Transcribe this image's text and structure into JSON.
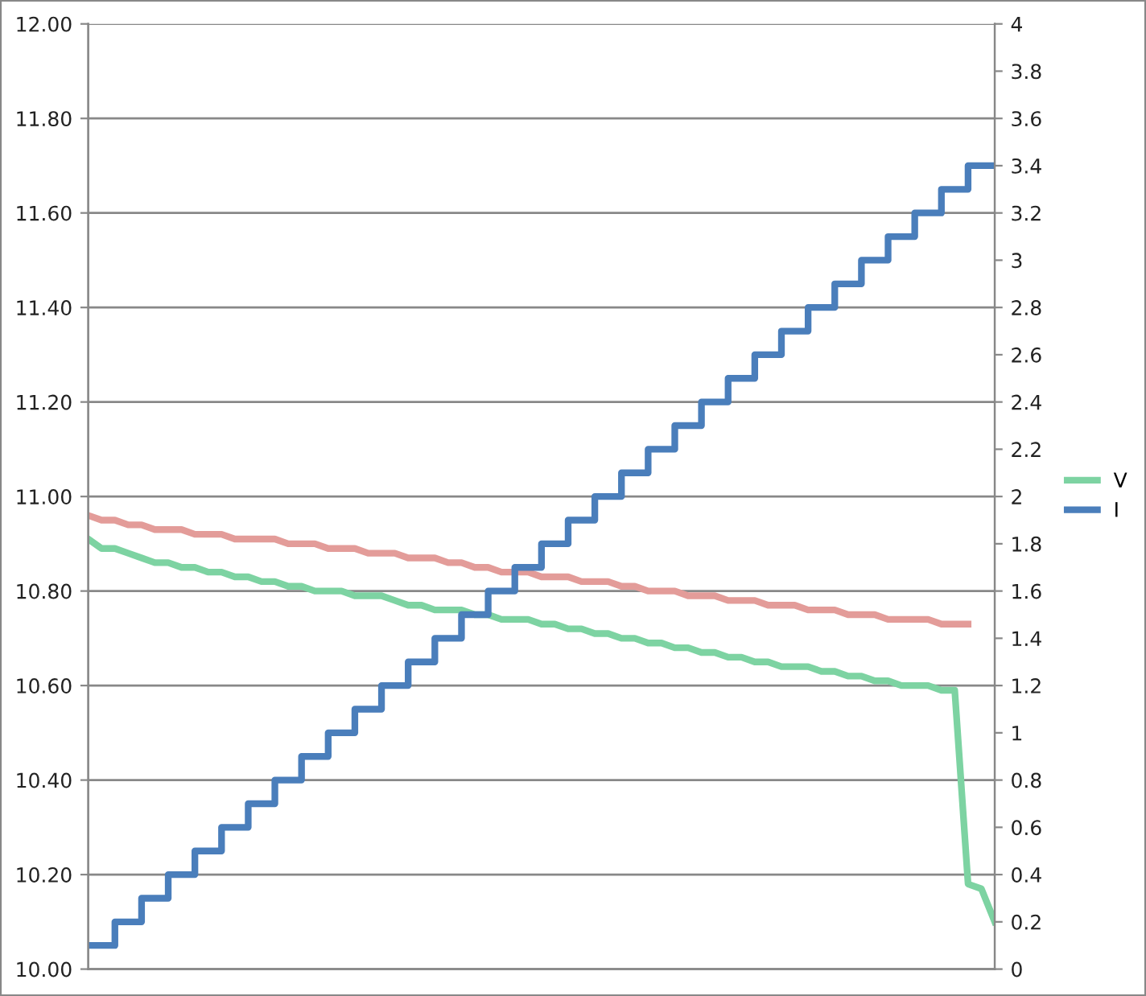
{
  "chart_data": {
    "type": "line",
    "categories": [
      null,
      null,
      null,
      null,
      null,
      null,
      null,
      null,
      null,
      null,
      null,
      null,
      null,
      null,
      null,
      null,
      null,
      null,
      null,
      null,
      null,
      null,
      null,
      null,
      null,
      null,
      null,
      null,
      null,
      null,
      null,
      null,
      null,
      null,
      null,
      null,
      null,
      null,
      null,
      null,
      null,
      null,
      null,
      null,
      null,
      null,
      null,
      null,
      null,
      null,
      null,
      null,
      null,
      null,
      null,
      null,
      null,
      null,
      null,
      null,
      null,
      null,
      null,
      null,
      null,
      null,
      null,
      null,
      null
    ],
    "series": [
      {
        "color": "#e39c99",
        "values": [
          10.96,
          10.95,
          10.95,
          10.94,
          10.94,
          10.93,
          10.93,
          10.93,
          10.92,
          10.92,
          10.92,
          10.91,
          10.91,
          10.91,
          10.91,
          10.9,
          10.9,
          10.9,
          10.89,
          10.89,
          10.89,
          10.88,
          10.88,
          10.88,
          10.87,
          10.87,
          10.87,
          10.86,
          10.86,
          10.85,
          10.85,
          10.84,
          10.84,
          10.84,
          10.83,
          10.83,
          10.83,
          10.82,
          10.82,
          10.82,
          10.81,
          10.81,
          10.8,
          10.8,
          10.8,
          10.79,
          10.79,
          10.79,
          10.78,
          10.78,
          10.78,
          10.77,
          10.77,
          10.77,
          10.76,
          10.76,
          10.76,
          10.75,
          10.75,
          10.75,
          10.74,
          10.74,
          10.74,
          10.74,
          10.73,
          10.73,
          10.73,
          null,
          null
        ]
      },
      {
        "name": "V",
        "color": "#7dd3a2",
        "values": [
          10.91,
          10.89,
          10.89,
          10.88,
          10.87,
          10.86,
          10.86,
          10.85,
          10.85,
          10.84,
          10.84,
          10.83,
          10.83,
          10.82,
          10.82,
          10.81,
          10.81,
          10.8,
          10.8,
          10.8,
          10.79,
          10.79,
          10.79,
          10.78,
          10.77,
          10.77,
          10.76,
          10.76,
          10.76,
          10.75,
          10.75,
          10.74,
          10.74,
          10.74,
          10.73,
          10.73,
          10.72,
          10.72,
          10.71,
          10.71,
          10.7,
          10.7,
          10.69,
          10.69,
          10.68,
          10.68,
          10.67,
          10.67,
          10.66,
          10.66,
          10.65,
          10.65,
          10.64,
          10.64,
          10.64,
          10.63,
          10.63,
          10.62,
          10.62,
          10.61,
          10.61,
          10.6,
          10.6,
          10.6,
          10.59,
          10.59,
          10.18,
          10.17,
          10.1
        ]
      },
      {
        "name": "I",
        "type": "step",
        "axis": "y2",
        "color": "#4a7ebb",
        "values": [
          0.1,
          0.1,
          0.2,
          0.2,
          0.3,
          0.3,
          0.4,
          0.4,
          0.5,
          0.5,
          0.6,
          0.6,
          0.7,
          0.7,
          0.8,
          0.8,
          0.9,
          0.9,
          1.0,
          1.0,
          1.1,
          1.1,
          1.2,
          1.2,
          1.3,
          1.3,
          1.4,
          1.4,
          1.5,
          1.5,
          1.6,
          1.6,
          1.7,
          1.7,
          1.8,
          1.8,
          1.9,
          1.9,
          2.0,
          2.0,
          2.1,
          2.1,
          2.2,
          2.2,
          2.3,
          2.3,
          2.4,
          2.4,
          2.5,
          2.5,
          2.6,
          2.6,
          2.7,
          2.7,
          2.8,
          2.8,
          2.9,
          2.9,
          3.0,
          3.0,
          3.1,
          3.1,
          3.2,
          3.2,
          3.3,
          3.3,
          3.4,
          3.4,
          3.4
        ]
      }
    ],
    "ylim": [
      10,
      12
    ],
    "yticks": [
      {
        "value": 10,
        "label": "10.00"
      },
      {
        "value": 10.2,
        "label": "10.20"
      },
      {
        "value": 10.4,
        "label": "10.40"
      },
      {
        "value": 10.6,
        "label": "10.60"
      },
      {
        "value": 10.8,
        "label": "10.80"
      },
      {
        "value": 11,
        "label": "11.00"
      },
      {
        "value": 11.2,
        "label": "11.20"
      },
      {
        "value": 11.4,
        "label": "11.40"
      },
      {
        "value": 11.6,
        "label": "11.60"
      },
      {
        "value": 11.8,
        "label": "11.80"
      },
      {
        "value": 12,
        "label": "12.00"
      }
    ],
    "y2lim": [
      0,
      4
    ],
    "y2ticks": [
      0,
      0.2,
      0.4,
      0.6,
      0.8,
      1,
      1.2,
      1.4,
      1.6,
      1.8,
      2,
      2.2,
      2.4,
      2.6,
      2.8,
      3,
      3.2,
      3.4,
      3.6,
      3.8,
      4
    ],
    "grid": "y",
    "legend": "right",
    "marker": "none",
    "line_style": "solid"
  }
}
